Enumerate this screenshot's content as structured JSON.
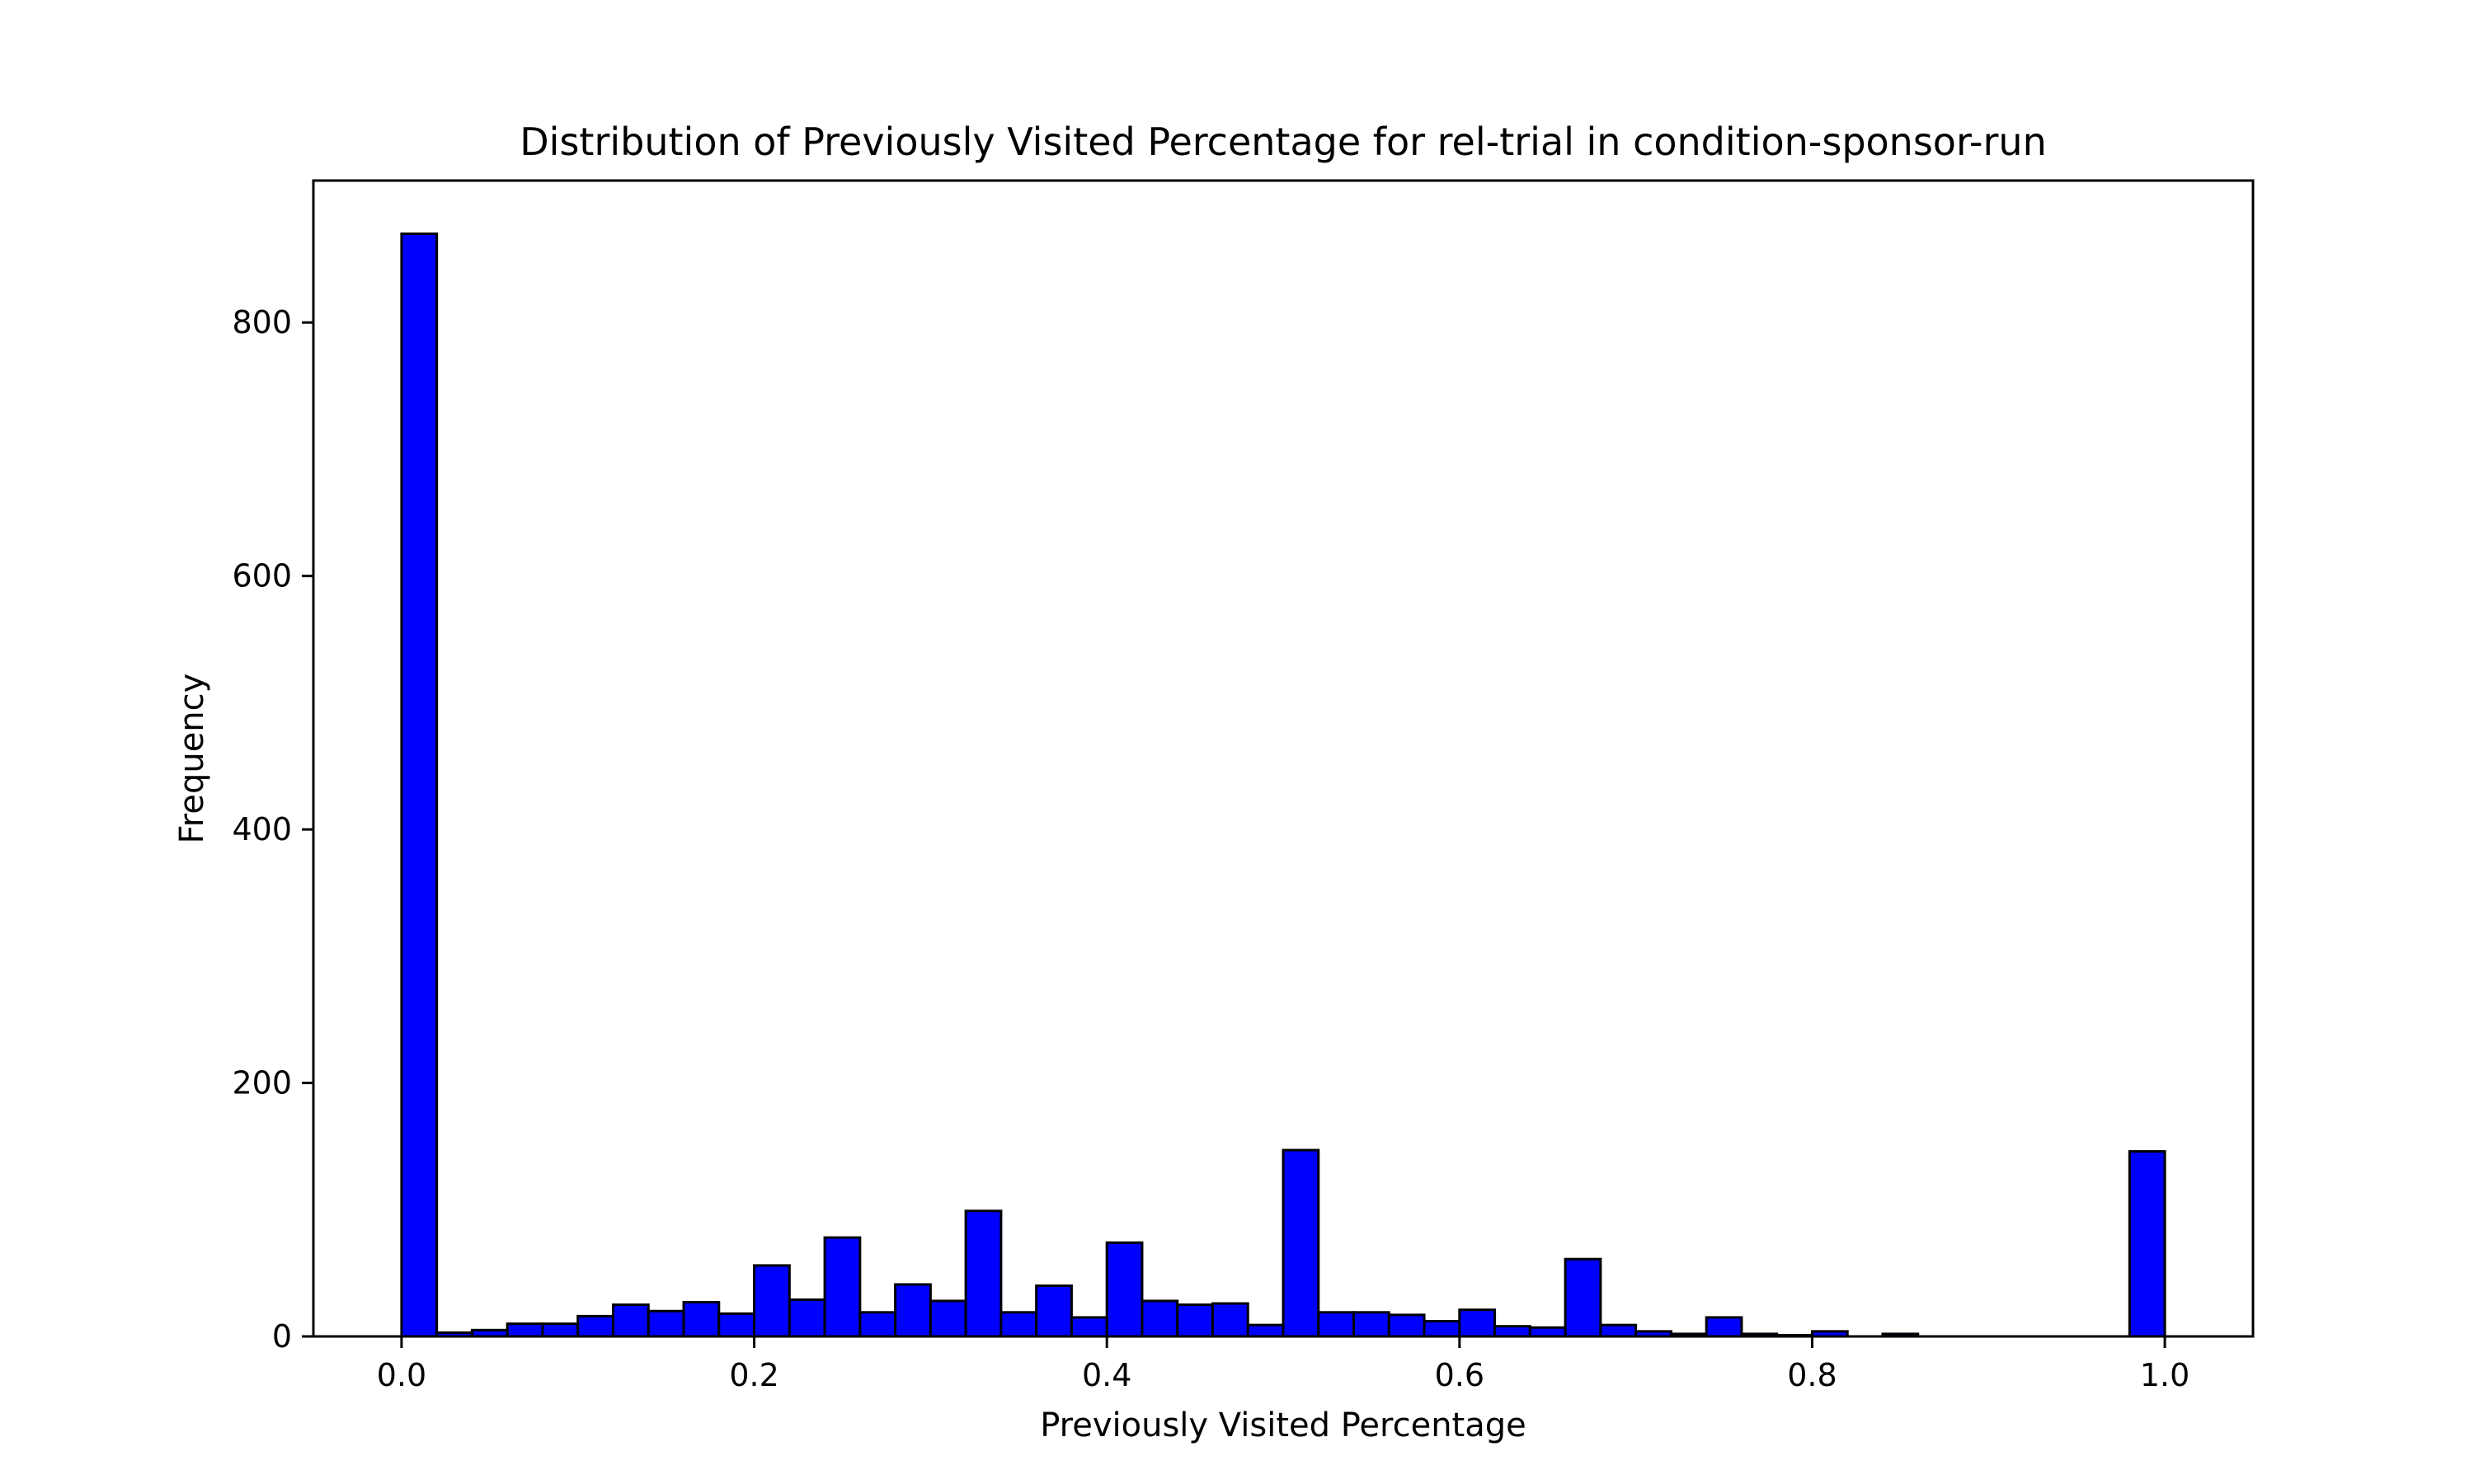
{
  "chart_data": {
    "type": "bar",
    "title": "Distribution of Previously Visited Percentage for rel-trial in condition-sponsor-run",
    "xlabel": "Previously Visited Percentage",
    "ylabel": "Frequency",
    "xlim": [
      -0.05,
      1.05
    ],
    "ylim": [
      0,
      912
    ],
    "x_ticks": [
      0.0,
      0.2,
      0.4,
      0.6,
      0.8,
      1.0
    ],
    "x_tick_labels": [
      "0.0",
      "0.2",
      "0.4",
      "0.6",
      "0.8",
      "1.0"
    ],
    "y_ticks": [
      0,
      200,
      400,
      600,
      800
    ],
    "y_tick_labels": [
      "0",
      "200",
      "400",
      "600",
      "800"
    ],
    "bin_edges": [
      0.0,
      0.02,
      0.04,
      0.06,
      0.08,
      0.1,
      0.12,
      0.14,
      0.16,
      0.18,
      0.2,
      0.22,
      0.24,
      0.26,
      0.28,
      0.3,
      0.32,
      0.34,
      0.36,
      0.38,
      0.4,
      0.42,
      0.44,
      0.46,
      0.48,
      0.5,
      0.52,
      0.54,
      0.56,
      0.58,
      0.6,
      0.62,
      0.64,
      0.66,
      0.68,
      0.7,
      0.72,
      0.74,
      0.76,
      0.78,
      0.8,
      0.82,
      0.84,
      0.86,
      0.88,
      0.9,
      0.92,
      0.94,
      0.96,
      0.98,
      1.0
    ],
    "values": [
      870,
      3,
      5,
      10,
      10,
      16,
      25,
      20,
      27,
      18,
      56,
      29,
      78,
      19,
      41,
      28,
      99,
      19,
      40,
      15,
      74,
      28,
      25,
      26,
      9,
      147,
      19,
      19,
      17,
      12,
      21,
      8,
      7,
      61,
      9,
      4,
      2,
      15,
      2,
      1,
      4,
      0,
      2,
      0,
      0,
      0,
      0,
      0,
      0,
      146
    ],
    "bar_color": "#0000ff",
    "edge_color": "#000000",
    "grid": false,
    "legend": false
  }
}
